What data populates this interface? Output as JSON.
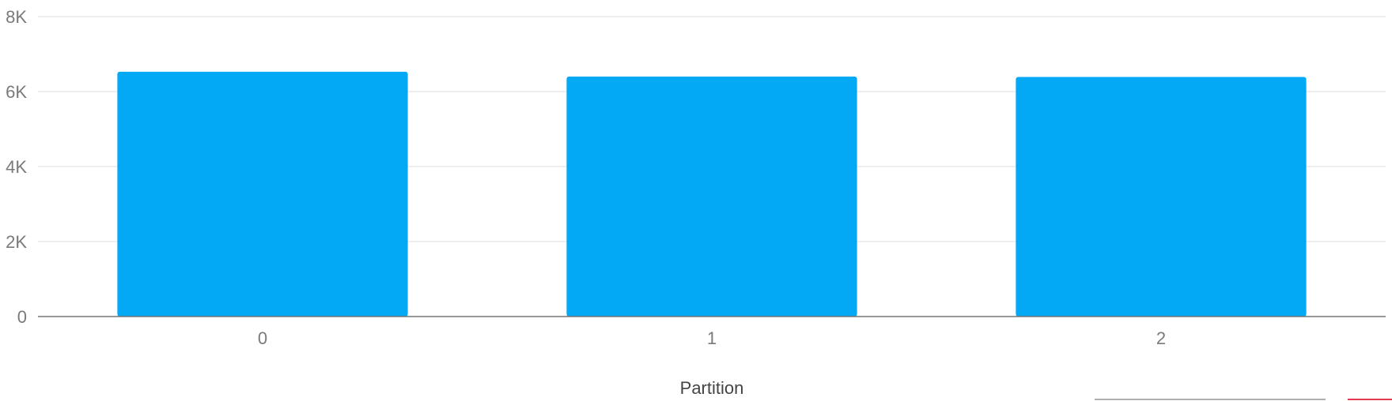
{
  "chart_data": {
    "type": "bar",
    "categories": [
      "0",
      "1",
      "2"
    ],
    "values": [
      6530,
      6400,
      6390
    ],
    "xlabel": "Partition",
    "ylabel": "",
    "ylim": [
      0,
      8000
    ],
    "y_ticks": [
      0,
      2000,
      4000,
      6000,
      8000
    ],
    "y_tick_labels": [
      "0",
      "2K",
      "4K",
      "6K",
      "8K"
    ],
    "grid": true,
    "bar_color": "#03a9f4"
  }
}
